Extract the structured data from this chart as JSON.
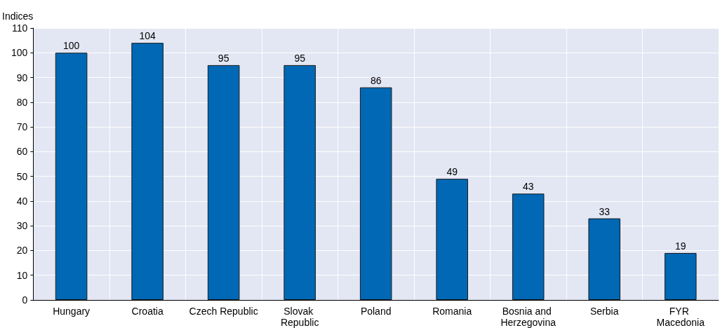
{
  "chart_data": {
    "type": "bar",
    "ylabel": "Indices",
    "categories": [
      "Hungary",
      "Croatia",
      "Czech Republic",
      "Slovak Republic",
      "Poland",
      "Romania",
      "Bosnia and Herzegovina",
      "Serbia",
      "FYR Macedonia"
    ],
    "values": [
      100,
      104,
      95,
      95,
      86,
      49,
      43,
      33,
      19
    ],
    "color": "#0068b4",
    "ylim": [
      0,
      110
    ],
    "yticks": [
      0,
      10,
      20,
      30,
      40,
      50,
      60,
      70,
      80,
      90,
      100,
      110
    ],
    "grid": true,
    "data_labels": true
  }
}
